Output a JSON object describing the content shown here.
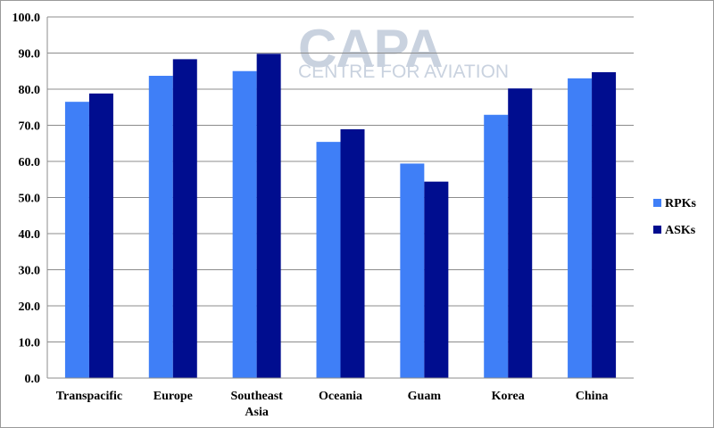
{
  "watermark": {
    "name": "CAPA",
    "tagline": "CENTRE FOR AVIATION"
  },
  "chart_data": {
    "type": "bar",
    "title": "",
    "xlabel": "",
    "ylabel": "",
    "ylim": [
      0,
      100
    ],
    "yticks": [
      "0.0",
      "10.0",
      "20.0",
      "30.0",
      "40.0",
      "50.0",
      "60.0",
      "70.0",
      "80.0",
      "90.0",
      "100.0"
    ],
    "grid": true,
    "legend_position": "right",
    "categories": [
      "Transpacific",
      "Europe",
      "Southeast Asia",
      "Oceania",
      "Guam",
      "Korea",
      "China"
    ],
    "category_lines": [
      [
        "Transpacific"
      ],
      [
        "Europe"
      ],
      [
        "Southeast",
        "Asia"
      ],
      [
        "Oceania"
      ],
      [
        "Guam"
      ],
      [
        "Korea"
      ],
      [
        "China"
      ]
    ],
    "series": [
      {
        "name": "RPKs",
        "color": "#3F7FF7",
        "values": [
          76.5,
          83.7,
          85.0,
          65.4,
          59.4,
          72.9,
          83.0
        ]
      },
      {
        "name": "ASKs",
        "color": "#000D8F",
        "values": [
          78.8,
          88.3,
          89.8,
          68.9,
          54.4,
          80.2,
          84.7
        ]
      }
    ]
  }
}
